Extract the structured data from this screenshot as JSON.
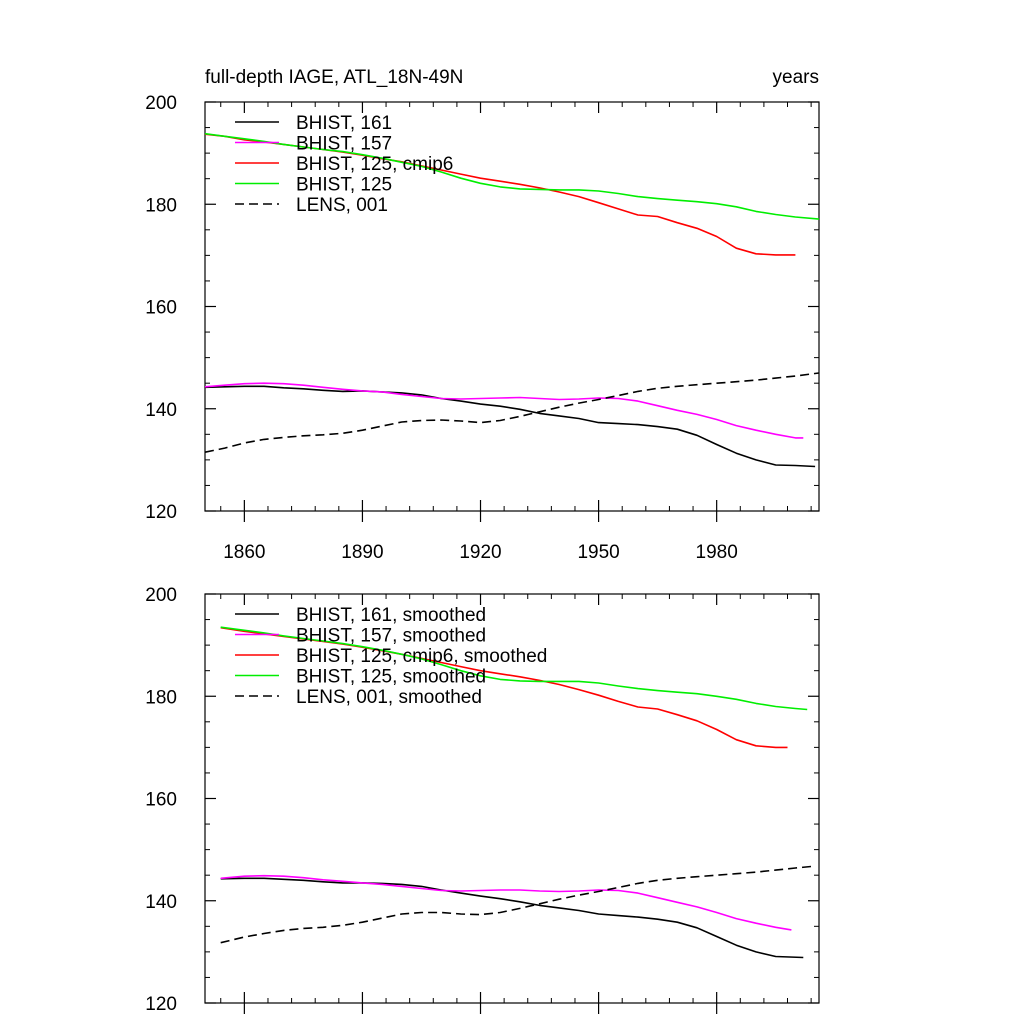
{
  "chart_data": [
    {
      "type": "line",
      "title": "full-depth IAGE, ATL_18N-49N",
      "units": "years",
      "xlim": [
        1850,
        2006
      ],
      "ylim": [
        120,
        200
      ],
      "xticks": [
        1860,
        1890,
        1920,
        1950,
        1980
      ],
      "xtick_labels": [
        "1860",
        "1890",
        "1920",
        "1950",
        "1980"
      ],
      "yticks": [
        120,
        140,
        160,
        180,
        200
      ],
      "ytick_labels": [
        "120",
        "140",
        "160",
        "180",
        "200"
      ],
      "grid": false,
      "legend_position": "top-left",
      "series": [
        {
          "name": "BHIST, 161",
          "color": "#000000",
          "dash": false,
          "x": [
            1850,
            1855,
            1860,
            1865,
            1870,
            1875,
            1880,
            1885,
            1890,
            1895,
            1900,
            1905,
            1910,
            1915,
            1920,
            1925,
            1930,
            1935,
            1940,
            1945,
            1950,
            1955,
            1960,
            1965,
            1970,
            1975,
            1980,
            1985,
            1990,
            1995,
            2000,
            2005
          ],
          "y": [
            144.2,
            144.3,
            144.4,
            144.4,
            144.1,
            143.9,
            143.6,
            143.4,
            143.5,
            143.3,
            143.1,
            142.7,
            142.0,
            141.5,
            140.9,
            140.5,
            139.9,
            139.1,
            138.6,
            138.1,
            137.3,
            137.1,
            136.9,
            136.5,
            136.0,
            134.8,
            133.0,
            131.3,
            130.0,
            129.0,
            128.9,
            128.7
          ]
        },
        {
          "name": "BHIST, 157",
          "color": "#ff00ff",
          "dash": false,
          "x": [
            1850,
            1855,
            1860,
            1865,
            1870,
            1875,
            1880,
            1885,
            1890,
            1895,
            1900,
            1905,
            1910,
            1915,
            1920,
            1925,
            1930,
            1935,
            1940,
            1945,
            1950,
            1955,
            1960,
            1965,
            1970,
            1975,
            1980,
            1985,
            1990,
            1995,
            2000,
            2002
          ],
          "y": [
            144.3,
            144.6,
            144.9,
            145.0,
            144.9,
            144.6,
            144.2,
            143.8,
            143.5,
            143.3,
            142.8,
            142.4,
            142.0,
            141.9,
            142.0,
            142.1,
            142.2,
            142.0,
            141.8,
            141.9,
            142.1,
            142.0,
            141.5,
            140.6,
            139.7,
            138.9,
            137.9,
            136.7,
            135.8,
            135.0,
            134.3,
            134.3
          ]
        },
        {
          "name": "BHIST, 125, cmip6",
          "color": "#ff0000",
          "dash": false,
          "x": [
            1850,
            1855,
            1860,
            1865,
            1870,
            1875,
            1880,
            1885,
            1890,
            1895,
            1900,
            1905,
            1910,
            1915,
            1920,
            1925,
            1930,
            1935,
            1940,
            1945,
            1950,
            1955,
            1960,
            1965,
            1970,
            1975,
            1980,
            1985,
            1990,
            1995,
            2000
          ],
          "y": [
            193.7,
            193.3,
            192.6,
            192.2,
            191.7,
            191.2,
            190.7,
            190.2,
            189.6,
            188.9,
            188.3,
            187.5,
            186.7,
            185.9,
            185.1,
            184.5,
            183.9,
            183.2,
            182.4,
            181.5,
            180.3,
            179.1,
            177.9,
            177.6,
            176.4,
            175.3,
            173.7,
            171.4,
            170.3,
            170.1,
            170.1
          ]
        },
        {
          "name": "BHIST, 125",
          "color": "#00ee00",
          "dash": false,
          "x": [
            1850,
            1855,
            1860,
            1865,
            1870,
            1875,
            1880,
            1885,
            1890,
            1895,
            1900,
            1905,
            1910,
            1915,
            1920,
            1925,
            1930,
            1935,
            1940,
            1945,
            1950,
            1955,
            1960,
            1965,
            1970,
            1975,
            1980,
            1985,
            1990,
            1995,
            2000,
            2006
          ],
          "y": [
            193.8,
            193.3,
            192.8,
            192.3,
            191.7,
            191.2,
            190.7,
            190.3,
            189.7,
            189.0,
            188.2,
            187.4,
            186.3,
            185.1,
            184.1,
            183.4,
            183.0,
            182.9,
            182.8,
            182.8,
            182.6,
            182.1,
            181.5,
            181.1,
            180.8,
            180.5,
            180.1,
            179.5,
            178.6,
            178.0,
            177.5,
            177.1
          ]
        },
        {
          "name": "LENS, 001",
          "color": "#000000",
          "dash": true,
          "x": [
            1850,
            1855,
            1860,
            1865,
            1870,
            1875,
            1880,
            1885,
            1890,
            1895,
            1900,
            1905,
            1910,
            1915,
            1920,
            1925,
            1930,
            1935,
            1940,
            1945,
            1950,
            1955,
            1960,
            1965,
            1970,
            1975,
            1980,
            1985,
            1990,
            1995,
            2000,
            2006
          ],
          "y": [
            131.5,
            132.3,
            133.3,
            134.0,
            134.4,
            134.7,
            134.9,
            135.2,
            135.8,
            136.6,
            137.4,
            137.7,
            137.8,
            137.6,
            137.3,
            137.7,
            138.5,
            139.4,
            140.3,
            141.1,
            141.8,
            142.6,
            143.4,
            144.0,
            144.4,
            144.7,
            145.0,
            145.3,
            145.6,
            146.0,
            146.4,
            147.0
          ]
        }
      ]
    },
    {
      "type": "line",
      "title": "",
      "xlim": [
        1850,
        2006
      ],
      "ylim": [
        120,
        200
      ],
      "xticks": [
        1860,
        1890,
        1920,
        1950,
        1980
      ],
      "yticks": [
        120,
        140,
        160,
        180,
        200
      ],
      "ytick_labels": [
        "120",
        "140",
        "160",
        "180",
        "200"
      ],
      "grid": false,
      "legend_position": "top-left",
      "series": [
        {
          "name": "BHIST, 161, smoothed",
          "color": "#000000",
          "dash": false,
          "x": [
            1854,
            1860,
            1865,
            1870,
            1875,
            1880,
            1885,
            1890,
            1895,
            1900,
            1905,
            1910,
            1915,
            1920,
            1925,
            1930,
            1935,
            1940,
            1945,
            1950,
            1955,
            1960,
            1965,
            1970,
            1975,
            1980,
            1985,
            1990,
            1995,
            2002
          ],
          "y": [
            144.3,
            144.4,
            144.4,
            144.2,
            144.0,
            143.7,
            143.5,
            143.5,
            143.4,
            143.2,
            142.8,
            142.1,
            141.5,
            140.9,
            140.4,
            139.8,
            139.1,
            138.6,
            138.1,
            137.4,
            137.1,
            136.8,
            136.4,
            135.8,
            134.7,
            133.0,
            131.3,
            130.0,
            129.1,
            128.9
          ]
        },
        {
          "name": "BHIST, 157, smoothed",
          "color": "#ff00ff",
          "dash": false,
          "x": [
            1854,
            1860,
            1865,
            1870,
            1875,
            1880,
            1885,
            1890,
            1895,
            1900,
            1905,
            1910,
            1915,
            1920,
            1925,
            1930,
            1935,
            1940,
            1945,
            1950,
            1955,
            1960,
            1965,
            1970,
            1975,
            1980,
            1985,
            1990,
            1995,
            1999
          ],
          "y": [
            144.4,
            144.8,
            144.9,
            144.8,
            144.5,
            144.1,
            143.8,
            143.5,
            143.2,
            142.8,
            142.4,
            142.0,
            141.9,
            142.0,
            142.1,
            142.1,
            141.9,
            141.8,
            141.9,
            142.1,
            142.0,
            141.5,
            140.6,
            139.7,
            138.8,
            137.7,
            136.5,
            135.6,
            134.8,
            134.3
          ]
        },
        {
          "name": "BHIST, 125, cmip6, smoothed",
          "color": "#ff0000",
          "dash": false,
          "x": [
            1854,
            1860,
            1865,
            1870,
            1875,
            1880,
            1885,
            1890,
            1895,
            1900,
            1905,
            1910,
            1915,
            1920,
            1925,
            1930,
            1935,
            1940,
            1945,
            1950,
            1955,
            1960,
            1965,
            1970,
            1975,
            1980,
            1985,
            1990,
            1995,
            1998
          ],
          "y": [
            193.4,
            192.7,
            192.2,
            191.7,
            191.2,
            190.7,
            190.2,
            189.6,
            188.9,
            188.2,
            187.4,
            186.6,
            185.8,
            185.0,
            184.4,
            183.8,
            183.1,
            182.3,
            181.3,
            180.2,
            179.0,
            177.9,
            177.5,
            176.4,
            175.2,
            173.5,
            171.5,
            170.3,
            170.0,
            170.0
          ]
        },
        {
          "name": "BHIST, 125, smoothed",
          "color": "#00ee00",
          "dash": false,
          "x": [
            1854,
            1860,
            1865,
            1870,
            1875,
            1880,
            1885,
            1890,
            1895,
            1900,
            1905,
            1910,
            1915,
            1920,
            1925,
            1930,
            1935,
            1940,
            1945,
            1950,
            1955,
            1960,
            1965,
            1970,
            1975,
            1980,
            1985,
            1990,
            1995,
            2000,
            2003
          ],
          "y": [
            193.5,
            192.9,
            192.4,
            191.8,
            191.3,
            190.8,
            190.3,
            189.7,
            189.0,
            188.2,
            187.3,
            186.2,
            185.0,
            184.0,
            183.3,
            183.0,
            182.9,
            182.9,
            182.9,
            182.6,
            182.0,
            181.5,
            181.1,
            180.8,
            180.5,
            180.0,
            179.4,
            178.6,
            178.0,
            177.6,
            177.4
          ]
        },
        {
          "name": "LENS, 001, smoothed",
          "color": "#000000",
          "dash": true,
          "x": [
            1854,
            1860,
            1865,
            1870,
            1875,
            1880,
            1885,
            1890,
            1895,
            1900,
            1905,
            1910,
            1915,
            1920,
            1925,
            1930,
            1935,
            1940,
            1945,
            1950,
            1955,
            1960,
            1965,
            1970,
            1975,
            1980,
            1985,
            1990,
            1995,
            2000,
            2004
          ],
          "y": [
            131.8,
            132.9,
            133.6,
            134.2,
            134.6,
            134.8,
            135.2,
            135.8,
            136.6,
            137.4,
            137.7,
            137.7,
            137.4,
            137.3,
            137.7,
            138.5,
            139.4,
            140.3,
            141.1,
            141.8,
            142.6,
            143.4,
            144.0,
            144.4,
            144.7,
            145.0,
            145.3,
            145.6,
            146.0,
            146.4,
            146.7
          ]
        }
      ]
    }
  ]
}
